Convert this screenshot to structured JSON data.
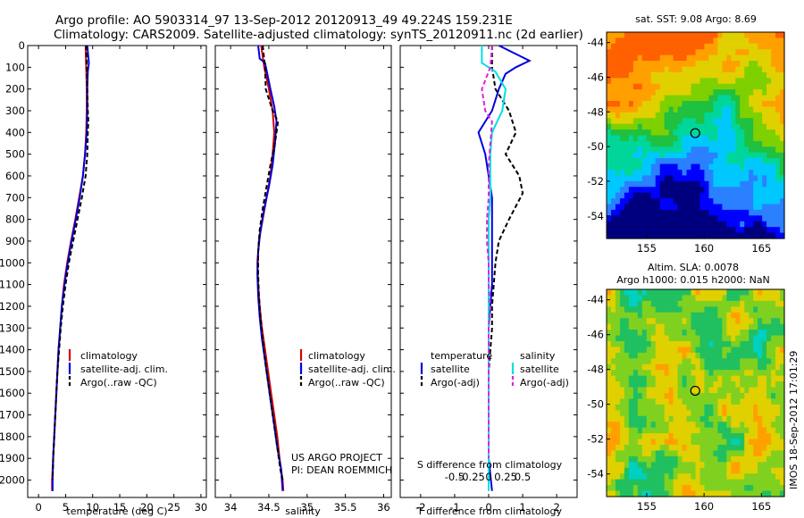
{
  "figure": {
    "title_line1": "Argo profile: AO 5903314_97 13-Sep-2012 20120913_49 49.224S 159.231E",
    "title_line2": "Climatology: CARS2009. Satellite-adjusted climatology: synTS_20120911.nc (2d earlier)",
    "project_line1": "US ARGO PROJECT",
    "project_line2": "PI: DEAN ROEMMICH",
    "vertical_stamp": "IMOS 18-Sep-2012 17:01:29"
  },
  "colors": {
    "climatology": "#d40000",
    "satellite": "#0000e0",
    "argo": "#000000",
    "salinity_satellite": "#00e0e0",
    "salinity_argo": "#e020e0"
  },
  "chart_data": [
    {
      "type": "line",
      "id": "temperature",
      "xlabel": "temperature (deg C)",
      "ylabel": "",
      "xlim": [
        -2,
        31
      ],
      "ylim": [
        2080,
        0
      ],
      "xticks": [
        0,
        5,
        10,
        15,
        20,
        25,
        30
      ],
      "yticks": [
        0,
        100,
        200,
        300,
        400,
        500,
        600,
        700,
        800,
        900,
        1000,
        1100,
        1200,
        1300,
        1400,
        1500,
        1600,
        1700,
        1800,
        1900,
        2000
      ],
      "legend": {
        "placement": "lower-center",
        "entries": [
          "climatology",
          "satellite-adj. clim.",
          "Argo(..raw -QC)"
        ]
      },
      "series": [
        {
          "name": "climatology",
          "style": "solid",
          "color": "#d40000",
          "points": [
            [
              8.7,
              0
            ],
            [
              8.8,
              100
            ],
            [
              8.9,
              200
            ],
            [
              8.9,
              300
            ],
            [
              8.8,
              400
            ],
            [
              8.6,
              500
            ],
            [
              8.2,
              600
            ],
            [
              7.5,
              700
            ],
            [
              6.8,
              800
            ],
            [
              6.0,
              900
            ],
            [
              5.3,
              1000
            ],
            [
              4.7,
              1100
            ],
            [
              4.3,
              1200
            ],
            [
              4.0,
              1300
            ],
            [
              3.7,
              1400
            ],
            [
              3.5,
              1500
            ],
            [
              3.3,
              1600
            ],
            [
              3.1,
              1700
            ],
            [
              2.9,
              1800
            ],
            [
              2.7,
              1900
            ],
            [
              2.5,
              2000
            ],
            [
              2.5,
              2050
            ]
          ]
        },
        {
          "name": "satellite-adj. clim.",
          "style": "solid",
          "color": "#0000e0",
          "points": [
            [
              9.0,
              0
            ],
            [
              9.3,
              80
            ],
            [
              9.1,
              120
            ],
            [
              9.0,
              200
            ],
            [
              9.0,
              300
            ],
            [
              8.9,
              400
            ],
            [
              8.6,
              500
            ],
            [
              8.2,
              600
            ],
            [
              7.6,
              700
            ],
            [
              6.9,
              800
            ],
            [
              6.1,
              900
            ],
            [
              5.4,
              1000
            ],
            [
              4.8,
              1100
            ],
            [
              4.3,
              1200
            ],
            [
              4.0,
              1300
            ],
            [
              3.7,
              1400
            ],
            [
              3.5,
              1500
            ],
            [
              3.3,
              1600
            ],
            [
              3.1,
              1700
            ],
            [
              2.9,
              1800
            ],
            [
              2.7,
              1900
            ],
            [
              2.6,
              2000
            ],
            [
              2.6,
              2050
            ]
          ]
        },
        {
          "name": "Argo(..raw -QC)",
          "style": "dashed",
          "color": "#000000",
          "points": [
            [
              8.8,
              0
            ],
            [
              8.9,
              100
            ],
            [
              9.0,
              200
            ],
            [
              9.1,
              300
            ],
            [
              9.2,
              350
            ],
            [
              9.1,
              400
            ],
            [
              9.0,
              500
            ],
            [
              8.7,
              600
            ],
            [
              8.0,
              700
            ],
            [
              7.2,
              800
            ],
            [
              6.4,
              900
            ],
            [
              5.6,
              1000
            ],
            [
              5.0,
              1100
            ],
            [
              4.5,
              1200
            ],
            [
              4.1,
              1300
            ],
            [
              3.8,
              1400
            ],
            [
              3.5,
              1500
            ],
            [
              3.3,
              1600
            ],
            [
              3.1,
              1700
            ],
            [
              2.9,
              1800
            ],
            [
              2.7,
              1900
            ],
            [
              2.6,
              2000
            ]
          ]
        }
      ]
    },
    {
      "type": "line",
      "id": "salinity",
      "xlabel": "salinity",
      "ylabel": "",
      "xlim": [
        33.8,
        36.1
      ],
      "ylim": [
        2080,
        0
      ],
      "xticks": [
        34,
        34.5,
        35,
        35.5,
        36
      ],
      "legend": {
        "placement": "lower-center",
        "entries": [
          "climatology",
          "satellite-adj. clim.",
          "Argo(..raw -QC)"
        ]
      },
      "series": [
        {
          "name": "climatology",
          "style": "solid",
          "color": "#d40000",
          "points": [
            [
              34.4,
              0
            ],
            [
              34.44,
              100
            ],
            [
              34.5,
              200
            ],
            [
              34.55,
              300
            ],
            [
              34.57,
              400
            ],
            [
              34.55,
              500
            ],
            [
              34.52,
              600
            ],
            [
              34.47,
              700
            ],
            [
              34.42,
              800
            ],
            [
              34.37,
              900
            ],
            [
              34.35,
              1000
            ],
            [
              34.36,
              1100
            ],
            [
              34.38,
              1200
            ],
            [
              34.41,
              1300
            ],
            [
              34.45,
              1400
            ],
            [
              34.49,
              1500
            ],
            [
              34.53,
              1600
            ],
            [
              34.57,
              1700
            ],
            [
              34.61,
              1800
            ],
            [
              34.64,
              1900
            ],
            [
              34.68,
              2000
            ],
            [
              34.69,
              2050
            ]
          ]
        },
        {
          "name": "satellite-adj. clim.",
          "style": "solid",
          "color": "#0000e0",
          "points": [
            [
              34.36,
              0
            ],
            [
              34.38,
              60
            ],
            [
              34.45,
              80
            ],
            [
              34.48,
              130
            ],
            [
              34.52,
              200
            ],
            [
              34.57,
              280
            ],
            [
              34.6,
              350
            ],
            [
              34.58,
              450
            ],
            [
              34.55,
              550
            ],
            [
              34.5,
              650
            ],
            [
              34.44,
              750
            ],
            [
              34.39,
              850
            ],
            [
              34.36,
              950
            ],
            [
              34.35,
              1050
            ],
            [
              34.36,
              1150
            ],
            [
              34.38,
              1250
            ],
            [
              34.41,
              1350
            ],
            [
              34.45,
              1450
            ],
            [
              34.49,
              1550
            ],
            [
              34.53,
              1650
            ],
            [
              34.57,
              1750
            ],
            [
              34.61,
              1850
            ],
            [
              34.66,
              1950
            ],
            [
              34.68,
              2050
            ]
          ]
        },
        {
          "name": "Argo(..raw -QC)",
          "style": "dashed",
          "color": "#000000",
          "points": [
            [
              34.42,
              0
            ],
            [
              34.45,
              100
            ],
            [
              34.46,
              200
            ],
            [
              34.55,
              300
            ],
            [
              34.62,
              350
            ],
            [
              34.58,
              450
            ],
            [
              34.52,
              550
            ],
            [
              34.47,
              650
            ],
            [
              34.42,
              750
            ],
            [
              34.38,
              850
            ],
            [
              34.36,
              950
            ],
            [
              34.36,
              1050
            ],
            [
              34.37,
              1150
            ],
            [
              34.39,
              1250
            ],
            [
              34.42,
              1350
            ],
            [
              34.45,
              1450
            ],
            [
              34.49,
              1550
            ],
            [
              34.53,
              1650
            ],
            [
              34.57,
              1750
            ],
            [
              34.61,
              1850
            ],
            [
              34.65,
              1950
            ],
            [
              34.68,
              2000
            ]
          ]
        }
      ]
    },
    {
      "type": "line",
      "id": "difference",
      "xlabel": "T difference from climatology",
      "x2label": "S difference from climatology",
      "ylabel": "",
      "xlim": [
        -2.6,
        2.6
      ],
      "ylim": [
        2080,
        0
      ],
      "xticks": [
        -2,
        -1,
        0,
        1,
        2
      ],
      "x2ticks": [
        -0.5,
        -0.25,
        0,
        0.25,
        0.5
      ],
      "x2tick_labels": [
        "-0.5",
        "-0.25",
        "0",
        "0.25",
        "0.5"
      ],
      "legend": {
        "placement": "center",
        "temperature_header": "temperature",
        "salinity_header": "salinity",
        "entries": [
          "satellite",
          "Argo(-adj)",
          "satellite",
          "Argo(-adj)"
        ]
      },
      "series": [
        {
          "name": "satellite",
          "group": "temperature",
          "style": "solid",
          "color": "#0000e0",
          "points": [
            [
              0.3,
              0
            ],
            [
              1.2,
              70
            ],
            [
              0.8,
              100
            ],
            [
              0.5,
              130
            ],
            [
              0.3,
              200
            ],
            [
              0.1,
              300
            ],
            [
              -0.1,
              350
            ],
            [
              -0.3,
              400
            ],
            [
              -0.1,
              500
            ],
            [
              0.0,
              600
            ],
            [
              0.1,
              700
            ],
            [
              0.1,
              900
            ],
            [
              0.1,
              1000
            ],
            [
              0.1,
              1100
            ],
            [
              0.0,
              1300
            ],
            [
              0.0,
              1500
            ],
            [
              0.0,
              1700
            ],
            [
              0.0,
              1900
            ],
            [
              0.1,
              2050
            ]
          ]
        },
        {
          "name": "Argo(-adj)",
          "group": "temperature",
          "style": "dashed",
          "color": "#000000",
          "points": [
            [
              0.1,
              0
            ],
            [
              0.1,
              100
            ],
            [
              0.2,
              200
            ],
            [
              0.6,
              300
            ],
            [
              0.8,
              400
            ],
            [
              0.5,
              500
            ],
            [
              0.9,
              600
            ],
            [
              1.0,
              680
            ],
            [
              0.6,
              800
            ],
            [
              0.3,
              900
            ],
            [
              0.2,
              1000
            ],
            [
              0.1,
              1200
            ],
            [
              0.1,
              1300
            ],
            [
              0.0,
              1500
            ],
            [
              0.0,
              1700
            ],
            [
              0.0,
              1900
            ]
          ]
        },
        {
          "name": "satellite",
          "group": "salinity",
          "style": "solid",
          "color": "#00e0e0",
          "points": [
            [
              -0.2,
              0
            ],
            [
              -0.2,
              80
            ],
            [
              0.2,
              120
            ],
            [
              0.5,
              200
            ],
            [
              0.4,
              300
            ],
            [
              0.1,
              400
            ],
            [
              0.05,
              500
            ],
            [
              0.05,
              600
            ],
            [
              0.05,
              700
            ],
            [
              0.0,
              800
            ],
            [
              0.0,
              900
            ],
            [
              0.0,
              1100
            ],
            [
              0.0,
              1300
            ],
            [
              0.0,
              1500
            ],
            [
              0.0,
              1700
            ],
            [
              0.0,
              1900
            ],
            [
              0.0,
              2050
            ]
          ]
        },
        {
          "name": "Argo(-adj)",
          "group": "salinity",
          "style": "dashed",
          "color": "#e020e0",
          "points": [
            [
              0.1,
              0
            ],
            [
              0.05,
              100
            ],
            [
              -0.2,
              200
            ],
            [
              -0.1,
              300
            ],
            [
              0.1,
              350
            ],
            [
              0.05,
              450
            ],
            [
              0.0,
              550
            ],
            [
              0.0,
              700
            ],
            [
              -0.05,
              800
            ],
            [
              -0.05,
              900
            ],
            [
              0.0,
              1000
            ],
            [
              0.0,
              1100
            ],
            [
              0.05,
              1200
            ],
            [
              0.0,
              1300
            ],
            [
              0.0,
              1500
            ],
            [
              0.0,
              1700
            ],
            [
              0.0,
              1900
            ]
          ]
        }
      ]
    },
    {
      "type": "heatmap",
      "id": "sst_map",
      "title": "sat. SST: 9.08 Argo: 8.69",
      "xlim": [
        151.5,
        167
      ],
      "ylim": [
        -55.3,
        -43.4
      ],
      "xticks": [
        155,
        160,
        165
      ],
      "yticks": [
        -44,
        -46,
        -48,
        -50,
        -52,
        -54
      ],
      "marker": {
        "lon": 159.231,
        "lat": -49.224
      },
      "palette": [
        "#00007f",
        "#0000ff",
        "#2a80ff",
        "#00c8ff",
        "#00d69a",
        "#20c040",
        "#7fd000",
        "#e0d000",
        "#ffa000",
        "#ff6000"
      ]
    },
    {
      "type": "heatmap",
      "id": "sla_map",
      "title": "Altim. SLA: 0.0078",
      "subtitle": "Argo h1000: 0.015 h2000: NaN",
      "xlim": [
        151.5,
        167
      ],
      "ylim": [
        -55.3,
        -43.4
      ],
      "xticks": [
        155,
        160,
        165
      ],
      "yticks": [
        -44,
        -46,
        -48,
        -50,
        -52,
        -54
      ],
      "marker": {
        "lon": 159.231,
        "lat": -49.224
      },
      "palette": [
        "#1040ff",
        "#00b0ff",
        "#00d0c0",
        "#20c060",
        "#80d020",
        "#e0d000",
        "#ffa000",
        "#e04000",
        "#a01000"
      ]
    }
  ]
}
